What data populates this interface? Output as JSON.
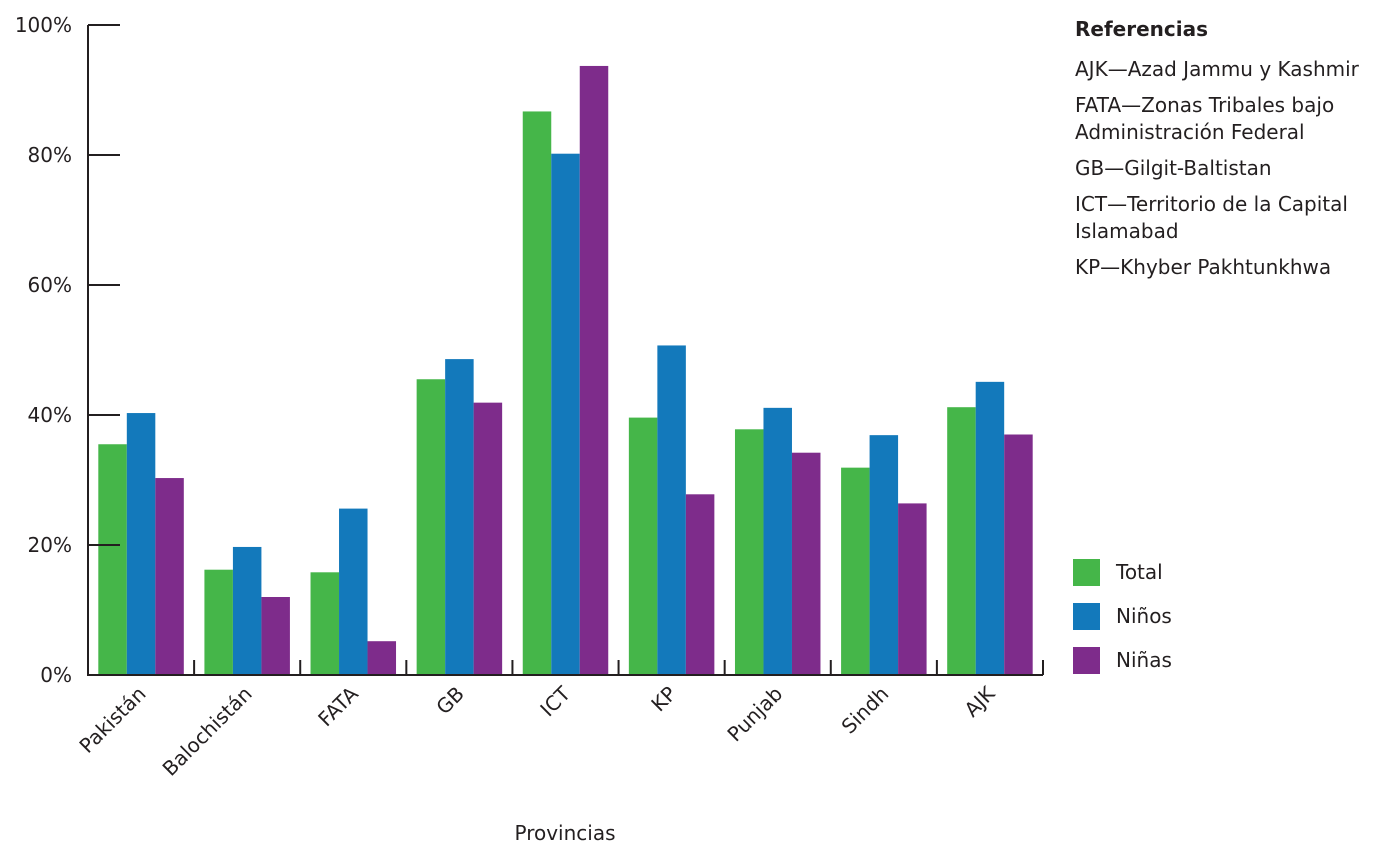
{
  "chart_data": {
    "type": "bar",
    "title": "",
    "xlabel": "Provincias",
    "ylabel": "",
    "ylim": [
      0,
      100
    ],
    "yticks": [
      "0%",
      "20%",
      "40%",
      "60%",
      "80%",
      "100%"
    ],
    "categories": [
      "Pakistán",
      "Balochistán",
      "FATA",
      "GB",
      "ICT",
      "KP",
      "Punjab",
      "Sindh",
      "AJK"
    ],
    "series": [
      {
        "name": "Total",
        "color": "#45b649",
        "values": [
          35.5,
          16.2,
          15.8,
          45.5,
          86.7,
          39.6,
          37.8,
          31.9,
          41.2
        ]
      },
      {
        "name": "Niños",
        "color": "#1379bb",
        "values": [
          40.3,
          19.7,
          25.6,
          48.6,
          80.2,
          50.7,
          41.1,
          36.9,
          45.1
        ]
      },
      {
        "name": "Niñas",
        "color": "#7e2c8b",
        "values": [
          30.3,
          12.0,
          5.2,
          41.9,
          93.7,
          27.8,
          34.2,
          26.4,
          37.0
        ]
      }
    ],
    "legend_position": "right",
    "grid": false
  },
  "references": {
    "title": "Referencias",
    "items": [
      "AJK—Azad Jammu y Kashmir",
      "FATA—Zonas Tribales bajo Administración Federal",
      "GB—Gilgit-Baltistan",
      "ICT—Territorio de la Capital Islamabad",
      "KP—Khyber Pakhtunkhwa"
    ]
  },
  "legend": {
    "items": [
      {
        "label": "Total",
        "color": "#45b649"
      },
      {
        "label": "Niños",
        "color": "#1379bb"
      },
      {
        "label": "Niñas",
        "color": "#7e2c8b"
      }
    ]
  }
}
